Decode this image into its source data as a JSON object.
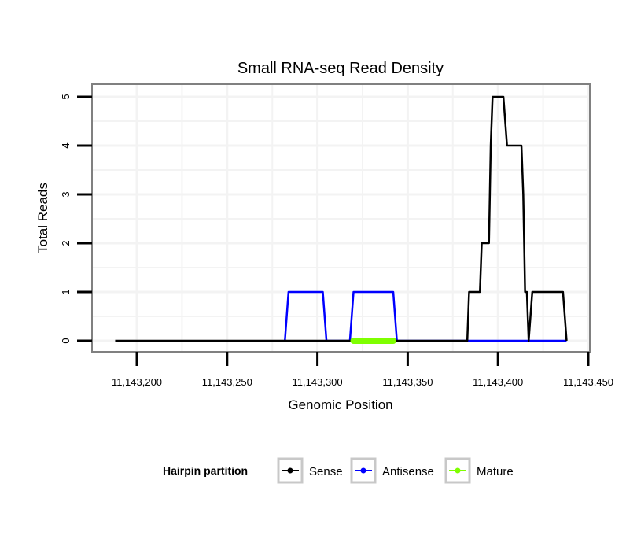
{
  "chart_data": {
    "type": "line",
    "title": "Small RNA-seq Read Density",
    "xlabel": "Genomic Position",
    "ylabel": "Total Reads",
    "xlim": [
      11143175,
      11143450
    ],
    "ylim": [
      -0.2,
      5.3
    ],
    "xticks": [
      11143200,
      11143250,
      11143300,
      11143350,
      11143400,
      11143450
    ],
    "xtick_labels": [
      "11,143,200",
      "11,143,250",
      "11,143,300",
      "11,143,350",
      "11,143,400",
      "11,143,450"
    ],
    "yticks": [
      0,
      1,
      2,
      3,
      4,
      5
    ],
    "ytick_labels": [
      "0",
      "1",
      "2",
      "3",
      "4",
      "5"
    ],
    "grid": true,
    "legend": {
      "title": "Hairpin partition",
      "placement": "bottom"
    },
    "series": [
      {
        "name": "Sense",
        "color": "#000000",
        "x": [
          11143188,
          11143383,
          11143384,
          11143390,
          11143391,
          11143395,
          11143396,
          11143397,
          11143403,
          11143405,
          11143413,
          11143414,
          11143415,
          11143416,
          11143417,
          11143419,
          11143436,
          11143438
        ],
        "y": [
          0,
          0,
          1,
          1,
          2,
          2,
          4,
          5,
          5,
          4,
          4,
          3,
          1,
          1,
          0,
          1,
          1,
          0
        ]
      },
      {
        "name": "Antisense",
        "color": "#0000ff",
        "x": [
          11143282,
          11143284,
          11143303,
          11143305,
          11143318,
          11143320,
          11143342,
          11143344,
          11143438
        ],
        "y": [
          0,
          1,
          1,
          0,
          0,
          1,
          1,
          0,
          0
        ]
      },
      {
        "name": "Mature",
        "color": "#7fff00",
        "x": [
          11143320,
          11143342
        ],
        "y": [
          0,
          0
        ]
      }
    ]
  }
}
